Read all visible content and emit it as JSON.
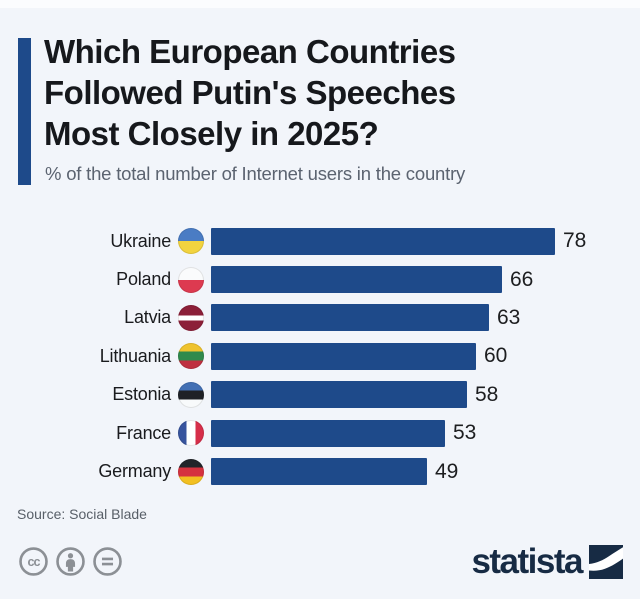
{
  "header": {
    "title_lines": [
      "Which European Countries",
      "Followed Putin's Speeches",
      "Most Closely in 2025?"
    ],
    "subtitle": "% of the total number of Internet users in the country"
  },
  "chart_data": {
    "type": "bar",
    "orientation": "horizontal",
    "title": "Which European Countries Followed Putin's Speeches Most Closely in 2025?",
    "value_description": "% of the total number of Internet users in the country",
    "categories": [
      "Ukraine",
      "Poland",
      "Latvia",
      "Lithuania",
      "Estonia",
      "France",
      "Germany"
    ],
    "values": [
      78,
      66,
      63,
      60,
      58,
      53,
      49
    ],
    "flags": [
      "ukraine",
      "poland",
      "latvia",
      "lithuania",
      "estonia",
      "france",
      "germany"
    ],
    "xlim": [
      0,
      78
    ],
    "grid": false,
    "value_labels_shown": true
  },
  "footer": {
    "source": "Source: Social Blade",
    "license_icons": [
      "cc-icon",
      "attribution-icon",
      "equals-icon"
    ],
    "logo_text": "statista"
  },
  "colors": {
    "bar": "#1e4a8a",
    "accent": "#1e4a8a",
    "background": "#f2f5fa",
    "logo_navy": "#172b44",
    "title_text": "#16181c",
    "subtitle_text": "#5b6370",
    "license_gray": "#8c9095"
  }
}
